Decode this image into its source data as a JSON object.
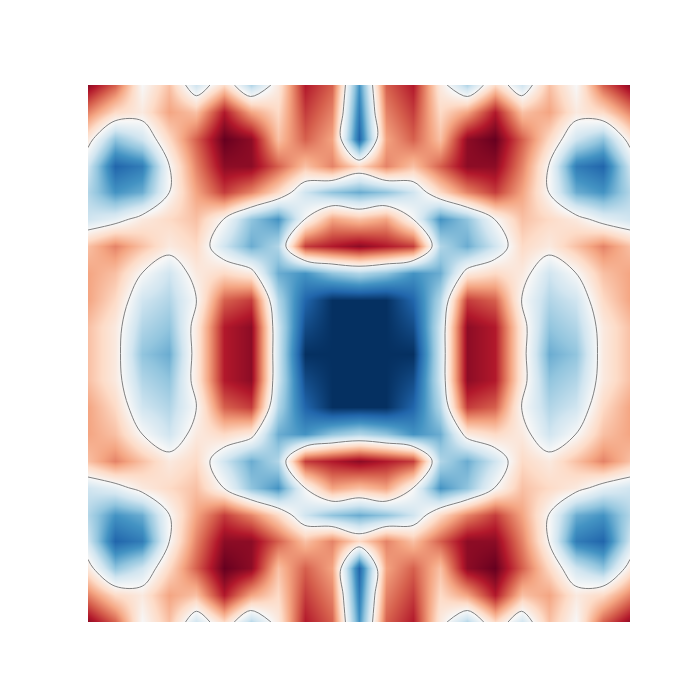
{
  "chart_data": {
    "type": "contour",
    "x": [
      -1,
      -0.9,
      -0.8,
      -0.7,
      -0.6,
      -0.5,
      -0.4,
      -0.3,
      -0.2,
      -0.1,
      0,
      0.1,
      0.2,
      0.3,
      0.4,
      0.5,
      0.6,
      0.7,
      0.8,
      0.9,
      1
    ],
    "y": [
      -1,
      -0.9,
      -0.8,
      -0.7,
      -0.6,
      -0.5,
      -0.4,
      -0.3,
      -0.2,
      -0.1,
      0,
      0.1,
      0.2,
      0.3,
      0.4,
      0.5,
      0.6,
      0.7,
      0.8,
      0.9,
      1
    ],
    "z": [
      [
        0.9,
        0.6,
        0,
        0.3,
        -0.2,
        0.2,
        -0.3,
        0.1,
        0.8,
        0.6,
        -0.6,
        0.6,
        0.8,
        0.1,
        -0.3,
        0.2,
        -0.2,
        0.3,
        0,
        0.6,
        0.9
      ],
      [
        0.5,
        0.2,
        0.1,
        0.4,
        0.3,
        0.8,
        0.4,
        0.2,
        0.7,
        0.5,
        -0.7,
        0.5,
        0.7,
        0.2,
        0.4,
        0.8,
        0.3,
        0.4,
        0.1,
        0.2,
        0.5
      ],
      [
        0.1,
        -0.4,
        -0.2,
        0.2,
        0.6,
        1,
        0.9,
        0.3,
        0.6,
        0.4,
        -0.8,
        0.4,
        0.6,
        0.3,
        0.9,
        1,
        0.6,
        0.2,
        -0.2,
        -0.4,
        0.1
      ],
      [
        -0.2,
        -0.8,
        -0.7,
        0,
        0.5,
        0.9,
        0.9,
        0.6,
        0.3,
        0.5,
        0.2,
        0.5,
        0.3,
        0.6,
        0.9,
        0.9,
        0.5,
        0,
        -0.7,
        -0.8,
        -0.2
      ],
      [
        -0.3,
        -0.6,
        -0.5,
        0,
        0.4,
        0.7,
        0.5,
        0.2,
        -0.2,
        -0.4,
        -0.5,
        -0.4,
        -0.2,
        0.2,
        0.5,
        0.7,
        0.4,
        0,
        -0.5,
        -0.6,
        -0.3
      ],
      [
        -0.2,
        -0.1,
        0.1,
        0.2,
        0.3,
        0,
        -0.4,
        -0.6,
        0,
        0.4,
        0.3,
        0.4,
        0,
        -0.6,
        -0.4,
        0,
        0.3,
        0.2,
        0.1,
        -0.1,
        -0.2
      ],
      [
        0.3,
        0.5,
        0.3,
        0.1,
        0.2,
        -0.2,
        -0.5,
        -0.3,
        0.7,
        0.8,
        0.9,
        0.8,
        0.7,
        -0.3,
        -0.5,
        -0.2,
        0.2,
        0.1,
        0.3,
        0.5,
        0.3
      ],
      [
        0.4,
        0.3,
        0,
        -0.2,
        0.1,
        0.2,
        0.1,
        -0.5,
        -0.6,
        -0.4,
        -0.3,
        -0.4,
        -0.6,
        -0.5,
        0.1,
        0.2,
        0.1,
        -0.2,
        0,
        0.3,
        0.4
      ],
      [
        0.4,
        0.2,
        -0.2,
        -0.3,
        0,
        0.6,
        0.7,
        -0.3,
        -0.8,
        -1,
        -1,
        -1,
        -0.8,
        -0.3,
        0.7,
        0.6,
        0,
        -0.3,
        -0.2,
        0.2,
        0.4
      ],
      [
        0.3,
        0.1,
        -0.3,
        -0.4,
        0.1,
        0.8,
        0.9,
        -0.2,
        -0.9,
        -1,
        -1,
        -1,
        -0.9,
        -0.2,
        0.9,
        0.8,
        0.1,
        -0.4,
        -0.3,
        0.1,
        0.3
      ],
      [
        0.3,
        0.1,
        -0.4,
        -0.5,
        0.1,
        0.8,
        0.9,
        -0.2,
        -1,
        -1,
        -1,
        -1,
        -1,
        -0.2,
        0.9,
        0.8,
        0.1,
        -0.5,
        -0.4,
        0.1,
        0.3
      ],
      [
        0.3,
        0.1,
        -0.3,
        -0.4,
        0.1,
        0.8,
        0.9,
        -0.2,
        -0.9,
        -1,
        -1,
        -1,
        -0.9,
        -0.2,
        0.9,
        0.8,
        0.1,
        -0.4,
        -0.3,
        0.1,
        0.3
      ],
      [
        0.4,
        0.2,
        -0.2,
        -0.3,
        0,
        0.6,
        0.7,
        -0.3,
        -0.8,
        -1,
        -1,
        -1,
        -0.8,
        -0.3,
        0.7,
        0.6,
        0,
        -0.3,
        -0.2,
        0.2,
        0.4
      ],
      [
        0.4,
        0.3,
        0,
        -0.2,
        0.1,
        0.2,
        0.1,
        -0.5,
        -0.6,
        -0.4,
        -0.3,
        -0.4,
        -0.6,
        -0.5,
        0.1,
        0.2,
        0.1,
        -0.2,
        0,
        0.3,
        0.4
      ],
      [
        0.3,
        0.5,
        0.3,
        0.1,
        0.2,
        -0.2,
        -0.5,
        -0.3,
        0.7,
        0.8,
        0.9,
        0.8,
        0.7,
        -0.3,
        -0.5,
        -0.2,
        0.2,
        0.1,
        0.3,
        0.5,
        0.3
      ],
      [
        -0.2,
        -0.1,
        0.1,
        0.2,
        0.3,
        0,
        -0.4,
        -0.6,
        0,
        0.4,
        0.3,
        0.4,
        0,
        -0.6,
        -0.4,
        0,
        0.3,
        0.2,
        0.1,
        -0.1,
        -0.2
      ],
      [
        -0.3,
        -0.6,
        -0.5,
        0,
        0.4,
        0.7,
        0.5,
        0.2,
        -0.2,
        -0.4,
        -0.5,
        -0.4,
        -0.2,
        0.2,
        0.5,
        0.7,
        0.4,
        0,
        -0.5,
        -0.6,
        -0.3
      ],
      [
        -0.2,
        -0.8,
        -0.7,
        0,
        0.5,
        0.9,
        0.9,
        0.6,
        0.3,
        0.5,
        0.2,
        0.5,
        0.3,
        0.6,
        0.9,
        0.9,
        0.5,
        0,
        -0.7,
        -0.8,
        -0.2
      ],
      [
        0.1,
        -0.4,
        -0.2,
        0.2,
        0.6,
        1,
        0.9,
        0.3,
        0.6,
        0.4,
        -0.8,
        0.4,
        0.6,
        0.3,
        0.9,
        1,
        0.6,
        0.2,
        -0.2,
        -0.4,
        0.1
      ],
      [
        0.5,
        0.2,
        0.1,
        0.4,
        0.3,
        0.8,
        0.4,
        0.2,
        0.7,
        0.5,
        -0.7,
        0.5,
        0.7,
        0.2,
        0.4,
        0.8,
        0.3,
        0.4,
        0.1,
        0.2,
        0.5
      ],
      [
        0.9,
        0.6,
        0,
        0.3,
        -0.2,
        0.2,
        -0.3,
        0.1,
        0.8,
        0.6,
        -0.6,
        0.6,
        0.8,
        0.1,
        -0.3,
        0.2,
        -0.2,
        0.3,
        0,
        0.6,
        0.9
      ]
    ],
    "zlim": [
      -1,
      1
    ],
    "contour_levels": [
      0
    ],
    "xlim": [
      -1,
      1
    ],
    "ylim": [
      -1,
      1
    ],
    "tick_labels": false,
    "grid": false
  }
}
